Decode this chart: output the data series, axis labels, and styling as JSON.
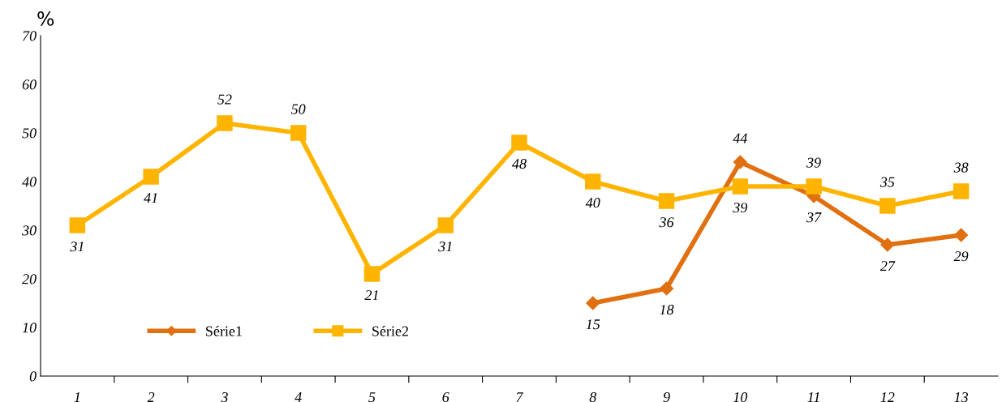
{
  "chart_data": {
    "type": "line",
    "ylabel": "%",
    "categories": [
      "1",
      "2",
      "3",
      "4",
      "5",
      "6",
      "7",
      "8",
      "9",
      "10",
      "11",
      "12",
      "13"
    ],
    "series": [
      {
        "name": "Série1",
        "color": "#e07010",
        "marker": "diamond",
        "values": [
          null,
          null,
          null,
          null,
          null,
          null,
          null,
          15,
          18,
          44,
          37,
          27,
          29
        ]
      },
      {
        "name": "Série2",
        "color": "#ffb400",
        "marker": "square",
        "values": [
          31,
          41,
          52,
          50,
          21,
          31,
          48,
          40,
          36,
          39,
          39,
          35,
          38
        ]
      }
    ],
    "ylim": [
      0,
      70
    ],
    "yticks": [
      0,
      10,
      20,
      30,
      40,
      50,
      60,
      70
    ],
    "grid": false,
    "legend": "bottom left",
    "data_labels": true,
    "line_style": "solid"
  }
}
